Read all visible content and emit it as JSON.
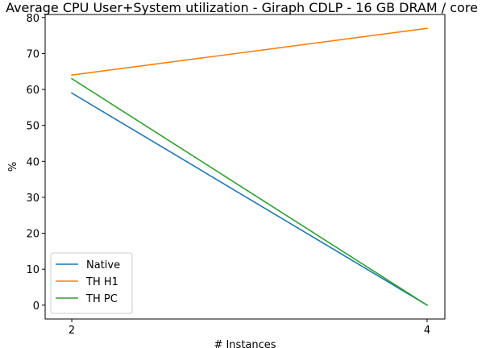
{
  "chart_data": {
    "type": "line",
    "title": "Average CPU User+System utilization - Giraph CDLP - 16 GB DRAM / core",
    "xlabel": "# Instances",
    "ylabel": "%",
    "x": [
      2,
      4
    ],
    "xticks": [
      2,
      4
    ],
    "xlim": [
      1.85,
      4.1
    ],
    "ylim": [
      -3.85,
      80.85
    ],
    "yticks": [
      0,
      10,
      20,
      30,
      40,
      50,
      60,
      70,
      80
    ],
    "grid": false,
    "legend_position": "lower-left",
    "series": [
      {
        "name": "Native",
        "values": [
          59,
          0
        ],
        "color": "#1f77b4"
      },
      {
        "name": "TH H1",
        "values": [
          64,
          77
        ],
        "color": "#ff7f0e"
      },
      {
        "name": "TH PC",
        "values": [
          63,
          0
        ],
        "color": "#2ca02c"
      }
    ]
  }
}
